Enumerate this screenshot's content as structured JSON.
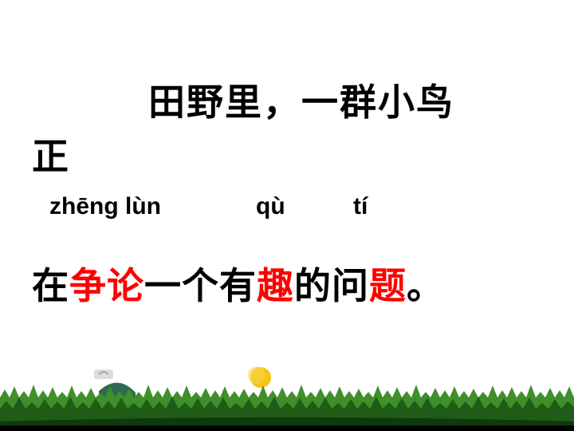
{
  "text": {
    "line1": "田野里，一群小鸟",
    "line2": "正",
    "pinyin": {
      "zheng_lun": "zhēng lùn",
      "qu": "qù",
      "ti": "tí"
    },
    "sentence": [
      {
        "t": "在",
        "red": false
      },
      {
        "t": "争论",
        "red": true
      },
      {
        "t": "一个有",
        "red": false
      },
      {
        "t": "趣",
        "red": true
      },
      {
        "t": "的问",
        "red": false
      },
      {
        "t": "题",
        "red": true
      },
      {
        "t": "。",
        "red": false
      }
    ]
  },
  "colors": {
    "highlight": "#ff0000",
    "text": "#000000",
    "grass": "#2e7d1f",
    "moon": "#f5c518"
  },
  "scene": {
    "icons": [
      "house-icon",
      "moon-icon",
      "grass-silhouette"
    ]
  }
}
